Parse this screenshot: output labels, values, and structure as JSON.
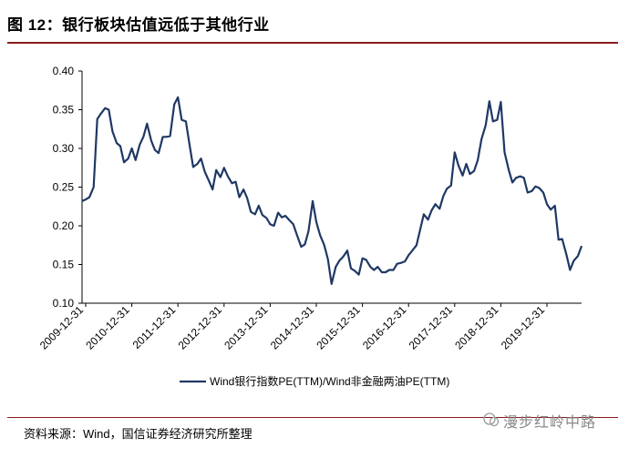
{
  "header": {
    "title": "图 12：银行板块估值远低于其他行业"
  },
  "footer": {
    "source": "资料来源：Wind，国信证券经济研究所整理",
    "watermark": "漫步红岭中路"
  },
  "chart_data": {
    "type": "line",
    "title": "",
    "xlabel": "",
    "ylabel": "",
    "ylim": [
      0.1,
      0.4
    ],
    "yticks": [
      "0.10",
      "0.15",
      "0.20",
      "0.25",
      "0.30",
      "0.35",
      "0.40"
    ],
    "xticks": [
      "2009-12-31",
      "2010-12-31",
      "2011-12-31",
      "2012-12-31",
      "2013-12-31",
      "2014-12-31",
      "2015-12-31",
      "2016-12-31",
      "2017-12-31",
      "2018-12-31",
      "2019-12-31"
    ],
    "x_start_year": 2009.92,
    "x_end_year": 2020.75,
    "legend": "Wind银行指数PE(TTM)/Wind非金融两油PE(TTM)",
    "series": [
      {
        "name": "Wind银行指数PE(TTM)/Wind非金融两油PE(TTM)",
        "color": "#1f3864",
        "x": [
          2009.92,
          2010.0,
          2010.08,
          2010.17,
          2010.25,
          2010.33,
          2010.42,
          2010.5,
          2010.58,
          2010.67,
          2010.75,
          2010.83,
          2010.92,
          2011.0,
          2011.08,
          2011.17,
          2011.25,
          2011.33,
          2011.42,
          2011.5,
          2011.58,
          2011.67,
          2011.75,
          2011.83,
          2011.92,
          2012.0,
          2012.08,
          2012.17,
          2012.25,
          2012.33,
          2012.42,
          2012.5,
          2012.58,
          2012.67,
          2012.75,
          2012.83,
          2012.92,
          2013.0,
          2013.08,
          2013.17,
          2013.25,
          2013.33,
          2013.42,
          2013.5,
          2013.58,
          2013.67,
          2013.75,
          2013.83,
          2013.92,
          2014.0,
          2014.08,
          2014.17,
          2014.25,
          2014.33,
          2014.42,
          2014.5,
          2014.58,
          2014.67,
          2014.75,
          2014.83,
          2014.92,
          2015.0,
          2015.08,
          2015.17,
          2015.25,
          2015.33,
          2015.42,
          2015.5,
          2015.58,
          2015.67,
          2015.75,
          2015.83,
          2015.92,
          2016.0,
          2016.08,
          2016.17,
          2016.25,
          2016.33,
          2016.42,
          2016.5,
          2016.58,
          2016.67,
          2016.75,
          2016.83,
          2016.92,
          2017.0,
          2017.08,
          2017.17,
          2017.25,
          2017.33,
          2017.42,
          2017.5,
          2017.58,
          2017.67,
          2017.75,
          2017.83,
          2017.92,
          2018.0,
          2018.08,
          2018.17,
          2018.25,
          2018.33,
          2018.42,
          2018.5,
          2018.58,
          2018.67,
          2018.75,
          2018.83,
          2018.92,
          2019.0,
          2019.08,
          2019.17,
          2019.25,
          2019.33,
          2019.42,
          2019.5,
          2019.58,
          2019.67,
          2019.75,
          2019.83,
          2019.92,
          2020.0,
          2020.08,
          2020.17,
          2020.25,
          2020.33,
          2020.42,
          2020.5,
          2020.58,
          2020.67,
          2020.75
        ],
        "values": [
          0.232,
          0.234,
          0.237,
          0.25,
          0.338,
          0.345,
          0.352,
          0.35,
          0.322,
          0.307,
          0.303,
          0.282,
          0.287,
          0.3,
          0.285,
          0.305,
          0.315,
          0.332,
          0.31,
          0.298,
          0.294,
          0.315,
          0.315,
          0.316,
          0.357,
          0.366,
          0.337,
          0.335,
          0.305,
          0.276,
          0.28,
          0.287,
          0.27,
          0.258,
          0.247,
          0.272,
          0.263,
          0.275,
          0.264,
          0.255,
          0.257,
          0.237,
          0.247,
          0.236,
          0.218,
          0.215,
          0.226,
          0.214,
          0.21,
          0.202,
          0.2,
          0.217,
          0.211,
          0.213,
          0.207,
          0.202,
          0.188,
          0.173,
          0.176,
          0.193,
          0.232,
          0.205,
          0.188,
          0.175,
          0.157,
          0.125,
          0.147,
          0.155,
          0.16,
          0.168,
          0.145,
          0.142,
          0.137,
          0.158,
          0.156,
          0.147,
          0.143,
          0.147,
          0.14,
          0.14,
          0.143,
          0.143,
          0.151,
          0.152,
          0.154,
          0.162,
          0.168,
          0.175,
          0.195,
          0.215,
          0.208,
          0.22,
          0.228,
          0.222,
          0.238,
          0.248,
          0.252,
          0.295,
          0.278,
          0.265,
          0.28,
          0.267,
          0.271,
          0.285,
          0.312,
          0.33,
          0.361,
          0.335,
          0.337,
          0.36,
          0.295,
          0.272,
          0.256,
          0.262,
          0.264,
          0.262,
          0.243,
          0.245,
          0.251,
          0.249,
          0.243,
          0.228,
          0.221,
          0.226,
          0.182,
          0.183,
          0.163,
          0.143,
          0.155,
          0.161,
          0.174
        ]
      }
    ]
  }
}
